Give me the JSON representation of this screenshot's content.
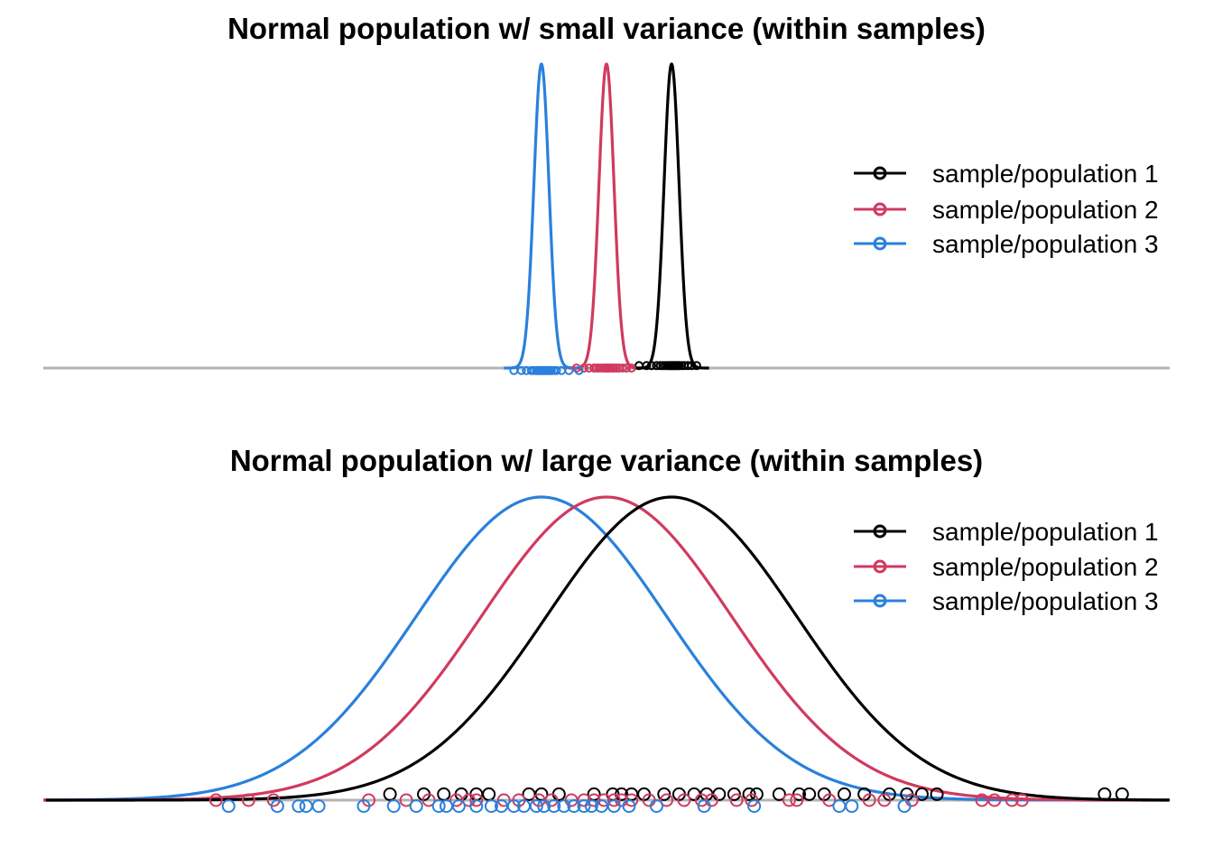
{
  "chart_data": [
    {
      "type": "line",
      "title": "Normal population w/ small variance (within samples)",
      "xlim": [
        -4.5,
        4.5
      ],
      "grid": false,
      "axes_visible": false,
      "legend_placement": "right",
      "legend": [
        {
          "label": "sample/population 1",
          "color": "#000000"
        },
        {
          "label": "sample/population 2",
          "color": "#D03A5F"
        },
        {
          "label": "sample/population 3",
          "color": "#2A80DB"
        }
      ],
      "series": [
        {
          "name": "sample/population 1",
          "color": "#000000",
          "mean": 0.52,
          "sd": 0.06,
          "points": [
            0.26,
            0.32,
            0.36,
            0.4,
            0.43,
            0.45,
            0.47,
            0.49,
            0.5,
            0.51,
            0.52,
            0.53,
            0.54,
            0.55,
            0.56,
            0.57,
            0.58,
            0.6,
            0.62,
            0.65,
            0.68,
            0.72
          ]
        },
        {
          "name": "sample/population 2",
          "color": "#D03A5F",
          "mean": 0.0,
          "sd": 0.06,
          "points": [
            -0.24,
            -0.18,
            -0.14,
            -0.1,
            -0.08,
            -0.06,
            -0.04,
            -0.02,
            -0.01,
            0.0,
            0.01,
            0.02,
            0.03,
            0.05,
            0.06,
            0.08,
            0.1,
            0.13,
            0.16,
            0.2
          ]
        },
        {
          "name": "sample/population 3",
          "color": "#2A80DB",
          "mean": -0.52,
          "sd": 0.06,
          "points": [
            -0.74,
            -0.68,
            -0.64,
            -0.6,
            -0.58,
            -0.56,
            -0.55,
            -0.54,
            -0.53,
            -0.52,
            -0.51,
            -0.5,
            -0.49,
            -0.48,
            -0.47,
            -0.46,
            -0.45,
            -0.44,
            -0.42,
            -0.4,
            -0.36,
            -0.3,
            -0.22
          ]
        }
      ]
    },
    {
      "type": "line",
      "title": "Normal population w/ large variance (within samples)",
      "xlim": [
        -4.5,
        4.5
      ],
      "grid": false,
      "axes_visible": false,
      "legend_placement": "right",
      "legend": [
        {
          "label": "sample/population 1",
          "color": "#000000"
        },
        {
          "label": "sample/population 2",
          "color": "#D03A5F"
        },
        {
          "label": "sample/population 3",
          "color": "#2A80DB"
        }
      ],
      "series": [
        {
          "name": "sample/population 1",
          "color": "#000000",
          "mean": 0.52,
          "sd": 1.0,
          "points": [
            -1.73,
            -1.46,
            -1.3,
            -1.16,
            -1.04,
            -0.94,
            -0.62,
            -0.52,
            -0.38,
            -0.1,
            0.05,
            0.12,
            0.2,
            0.3,
            0.46,
            0.58,
            0.7,
            0.8,
            0.9,
            1.02,
            1.14,
            1.2,
            1.38,
            1.54,
            1.62,
            1.74,
            1.9,
            2.06,
            2.26,
            2.4,
            2.52,
            2.64,
            3.98,
            4.12
          ]
        },
        {
          "name": "sample/population 2",
          "color": "#D03A5F",
          "mean": 0.0,
          "sd": 1.0,
          "points": [
            -3.12,
            -2.86,
            -2.66,
            -1.9,
            -1.6,
            -1.42,
            -1.2,
            -1.1,
            -1.04,
            -0.82,
            -0.7,
            -0.54,
            -0.44,
            -0.28,
            -0.18,
            -0.1,
            -0.02,
            0.06,
            0.12,
            0.2,
            0.34,
            0.48,
            0.62,
            0.76,
            0.84,
            1.04,
            1.16,
            1.46,
            1.52,
            1.78,
            2.1,
            2.22,
            2.44,
            3.0,
            3.1,
            3.24,
            3.32
          ]
        },
        {
          "name": "sample/population 3",
          "color": "#2A80DB",
          "mean": -0.52,
          "sd": 1.0,
          "points": [
            -3.02,
            -2.63,
            -2.46,
            -2.4,
            -2.3,
            -1.94,
            -1.7,
            -1.52,
            -1.34,
            -1.28,
            -1.18,
            -1.04,
            -0.92,
            -0.84,
            -0.74,
            -0.66,
            -0.56,
            -0.5,
            -0.42,
            -0.34,
            -0.26,
            -0.18,
            -0.12,
            -0.04,
            0.06,
            0.18,
            0.4,
            0.78,
            1.18,
            1.86,
            1.96,
            2.38
          ]
        }
      ]
    }
  ]
}
